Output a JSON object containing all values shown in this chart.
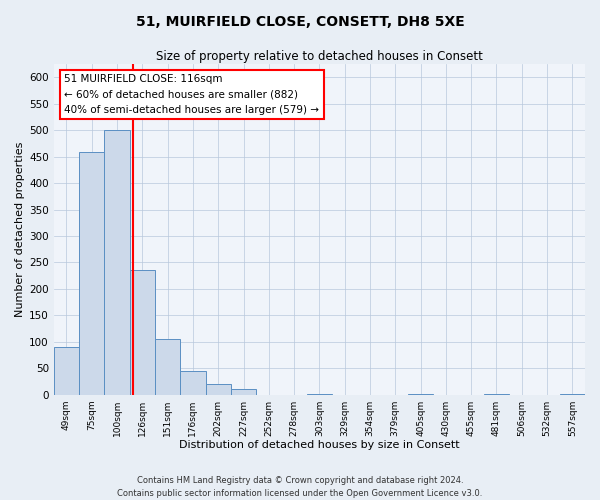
{
  "title": "51, MUIRFIELD CLOSE, CONSETT, DH8 5XE",
  "subtitle": "Size of property relative to detached houses in Consett",
  "xlabel": "Distribution of detached houses by size in Consett",
  "ylabel": "Number of detached properties",
  "bin_labels": [
    "49sqm",
    "75sqm",
    "100sqm",
    "126sqm",
    "151sqm",
    "176sqm",
    "202sqm",
    "227sqm",
    "252sqm",
    "278sqm",
    "303sqm",
    "329sqm",
    "354sqm",
    "379sqm",
    "405sqm",
    "430sqm",
    "455sqm",
    "481sqm",
    "506sqm",
    "532sqm",
    "557sqm"
  ],
  "bar_heights": [
    90,
    458,
    500,
    236,
    105,
    45,
    20,
    10,
    0,
    0,
    2,
    0,
    0,
    0,
    1,
    0,
    0,
    1,
    0,
    0,
    1
  ],
  "bar_color": "#ccd9ea",
  "bar_edge_color": "#5a8fc3",
  "reference_line_color": "red",
  "annotation_title": "51 MUIRFIELD CLOSE: 116sqm",
  "annotation_line1": "← 60% of detached houses are smaller (882)",
  "annotation_line2": "40% of semi-detached houses are larger (579) →",
  "annotation_box_color": "white",
  "annotation_box_edge_color": "red",
  "ylim": [
    0,
    625
  ],
  "yticks": [
    0,
    50,
    100,
    150,
    200,
    250,
    300,
    350,
    400,
    450,
    500,
    550,
    600
  ],
  "footnote1": "Contains HM Land Registry data © Crown copyright and database right 2024.",
  "footnote2": "Contains public sector information licensed under the Open Government Licence v3.0.",
  "bg_color": "#e8eef5",
  "plot_bg_color": "#f0f4fa"
}
